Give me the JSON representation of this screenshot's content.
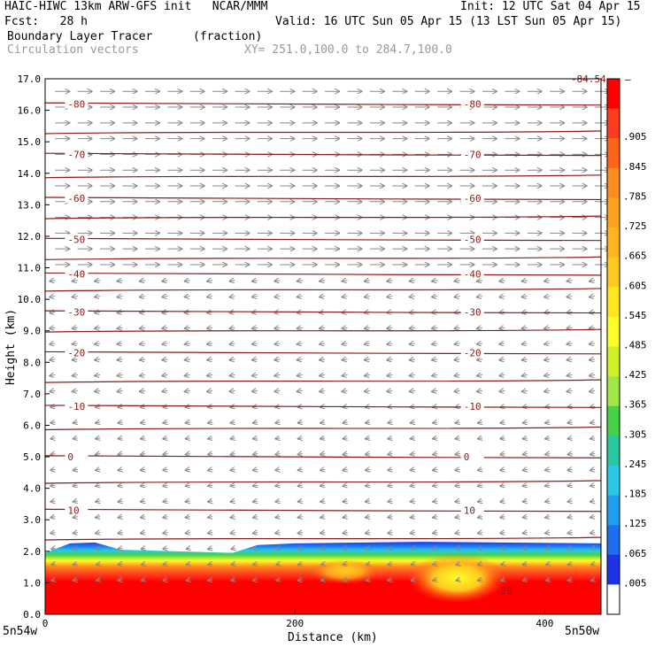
{
  "header": {
    "title_left": "HAIC-HIWC 13km ARW-GFS init   NCAR/MMM",
    "init": "Init: 12 UTC Sat 04 Apr 15",
    "fcst": "Fcst:   28 h",
    "valid": "Valid: 16 UTC Sun 05 Apr 15 (13 LST Sun 05 Apr 15)",
    "field": "Boundary Layer Tracer",
    "units": "(fraction)",
    "vectors": "Circulation vectors",
    "xy": "XY= 251.0,100.0 to 284.7,100.0"
  },
  "axes": {
    "ylabel": "Height (km)",
    "xlabel": "Distance (km)",
    "left_corner": "5n54w",
    "right_corner": "5n50w"
  },
  "colorbar": {
    "labels": [
      ".905",
      ".845",
      ".785",
      ".725",
      ".665",
      ".605",
      ".545",
      ".485",
      ".425",
      ".365",
      ".305",
      ".245",
      ".185",
      ".125",
      ".065",
      ".005"
    ],
    "colors": [
      "#ff0000",
      "#ff3c1e",
      "#ff6418",
      "#ff8c1e",
      "#ffa01e",
      "#ffb41e",
      "#ffc81e",
      "#ffe61e",
      "#ffff28",
      "#d2f028",
      "#a0e646",
      "#46d246",
      "#28c8a0",
      "#28c8e6",
      "#1ea0f0",
      "#1e6ef0",
      "#1e32e6"
    ],
    "top_tick": "–"
  },
  "contour_labels": [
    "-80",
    "-70",
    "-60",
    "-50",
    "-40",
    "-30",
    "-20",
    "-10",
    "0",
    "10",
    "-20",
    "-84.54"
  ],
  "chart_data": {
    "type": "heatmap",
    "title": "Boundary Layer Tracer",
    "xlabel": "Distance (km)",
    "ylabel": "Height (km)",
    "xlim": [
      0,
      445
    ],
    "ylim": [
      0,
      17
    ],
    "x_ticks": [
      0,
      200,
      400
    ],
    "y_ticks": [
      "0.0",
      "1.0",
      "2.0",
      "3.0",
      "4.0",
      "5.0",
      "6.0",
      "7.0",
      "8.0",
      "9.0",
      "10.0",
      "11.0",
      "12.0",
      "13.0",
      "14.0",
      "15.0",
      "16.0",
      "17.0"
    ],
    "boundary_layer_top_km": [
      {
        "x": 0,
        "z": 1.95
      },
      {
        "x": 20,
        "z": 2.25
      },
      {
        "x": 40,
        "z": 2.28
      },
      {
        "x": 60,
        "z": 2.05
      },
      {
        "x": 150,
        "z": 1.95
      },
      {
        "x": 170,
        "z": 2.2
      },
      {
        "x": 200,
        "z": 2.25
      },
      {
        "x": 300,
        "z": 2.3
      },
      {
        "x": 445,
        "z": 2.25
      }
    ],
    "contours": [
      {
        "level": "-80",
        "z": 16.2
      },
      {
        "level": "",
        "z": 15.3
      },
      {
        "level": "-70",
        "z": 14.6
      },
      {
        "level": "",
        "z": 13.9
      },
      {
        "level": "-60",
        "z": 13.2
      },
      {
        "level": "",
        "z": 12.6
      },
      {
        "level": "-50",
        "z": 11.9
      },
      {
        "level": "",
        "z": 11.3
      },
      {
        "level": "-40",
        "z": 10.8
      },
      {
        "level": "",
        "z": 10.3
      },
      {
        "level": "-30",
        "z": 9.6
      },
      {
        "level": "",
        "z": 9.0
      },
      {
        "level": "-20",
        "z": 8.3
      },
      {
        "level": "",
        "z": 7.4
      },
      {
        "level": "-10",
        "z": 6.6
      },
      {
        "level": "",
        "z": 5.9
      },
      {
        "level": "0",
        "z": 5.0
      },
      {
        "level": "",
        "z": 4.2
      },
      {
        "level": "10",
        "z": 3.3
      },
      {
        "level": "",
        "z": 2.4
      }
    ],
    "colorbar_levels": [
      0.005,
      0.065,
      0.125,
      0.185,
      0.245,
      0.305,
      0.365,
      0.425,
      0.485,
      0.545,
      0.605,
      0.665,
      0.725,
      0.785,
      0.845,
      0.905
    ]
  }
}
